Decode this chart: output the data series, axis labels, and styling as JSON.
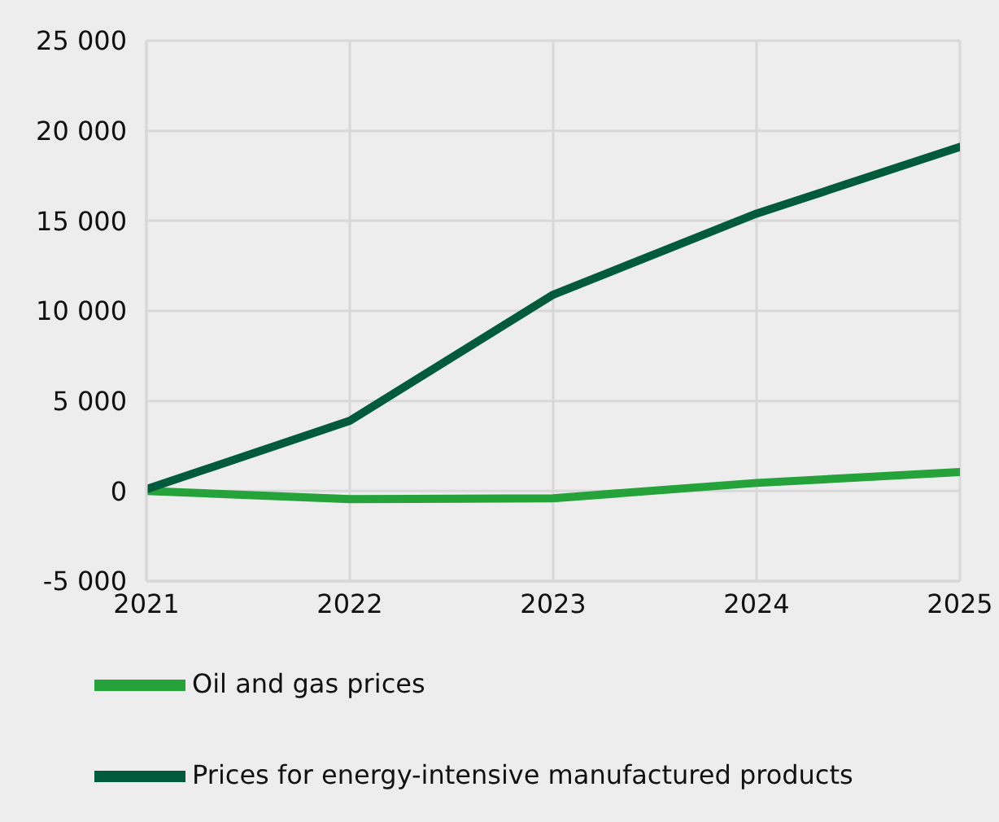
{
  "chart_data": {
    "type": "line",
    "x": [
      2021,
      2022,
      2023,
      2024,
      2025
    ],
    "series": [
      {
        "name": "Oil and gas prices",
        "color": "#25a23a",
        "values": [
          0,
          -450,
          -400,
          450,
          1050
        ]
      },
      {
        "name": "Prices for energy-intensive manufactured products",
        "color": "#005a3c",
        "values": [
          100,
          3900,
          10900,
          15400,
          19100
        ]
      }
    ],
    "xlim": [
      2021,
      2025
    ],
    "xticks": [
      2021,
      2022,
      2023,
      2024,
      2025
    ],
    "ylim": [
      -5000,
      25000
    ],
    "yticks": [
      {
        "value": -5000,
        "label": "-5 000"
      },
      {
        "value": 0,
        "label": "0"
      },
      {
        "value": 5000,
        "label": "5 000"
      },
      {
        "value": 10000,
        "label": "10 000"
      },
      {
        "value": 15000,
        "label": "15 000"
      },
      {
        "value": 20000,
        "label": "20 000"
      },
      {
        "value": 25000,
        "label": "25 000"
      }
    ],
    "grid": true,
    "legend": "bottom",
    "marker": "none",
    "line_style": "solid"
  }
}
